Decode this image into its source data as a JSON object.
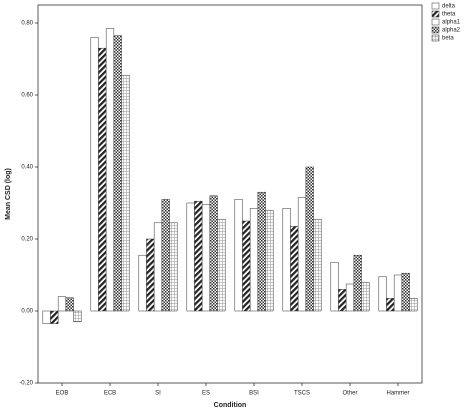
{
  "chart_data": {
    "type": "bar",
    "x_label": "Condition",
    "y_label": "Mean CSD (log)",
    "categories": [
      "EOB",
      "ECB",
      "SI",
      "ES",
      "BSI",
      "TSCS",
      "Other",
      "Hammer"
    ],
    "series": [
      {
        "name": "delta",
        "color": "#ffffff",
        "pattern": "solid",
        "values": [
          -0.035,
          0.76,
          0.155,
          0.3,
          0.31,
          0.285,
          0.135,
          0.095
        ]
      },
      {
        "name": "theta",
        "color": "#333333",
        "pattern": "hatch",
        "values": [
          -0.035,
          0.73,
          0.2,
          0.305,
          0.25,
          0.235,
          0.06,
          0.035
        ]
      },
      {
        "name": "alpha1",
        "color": "#ffffff",
        "pattern": "solid",
        "values": [
          0.04,
          0.785,
          0.245,
          0.295,
          0.285,
          0.315,
          0.075,
          0.1
        ]
      },
      {
        "name": "alpha2",
        "color": "#555555",
        "pattern": "checker",
        "values": [
          0.037,
          0.765,
          0.31,
          0.32,
          0.33,
          0.4,
          0.155,
          0.105
        ]
      },
      {
        "name": "beta",
        "color": "#888888",
        "pattern": "grid",
        "values": [
          -0.03,
          0.655,
          0.245,
          0.255,
          0.28,
          0.255,
          0.08,
          0.035
        ]
      }
    ],
    "ylim": [
      -0.2,
      0.85
    ],
    "yticks": [
      {
        "value": -0.2,
        "label": "-0.20"
      },
      {
        "value": 0,
        "label": "0.00"
      },
      {
        "value": 0.2,
        "label": "0.20"
      },
      {
        "value": 0.4,
        "label": "0.40"
      },
      {
        "value": 0.6,
        "label": "0.60"
      },
      {
        "value": 0.8,
        "label": "0.80"
      }
    ],
    "legend": "outside-top-right"
  }
}
